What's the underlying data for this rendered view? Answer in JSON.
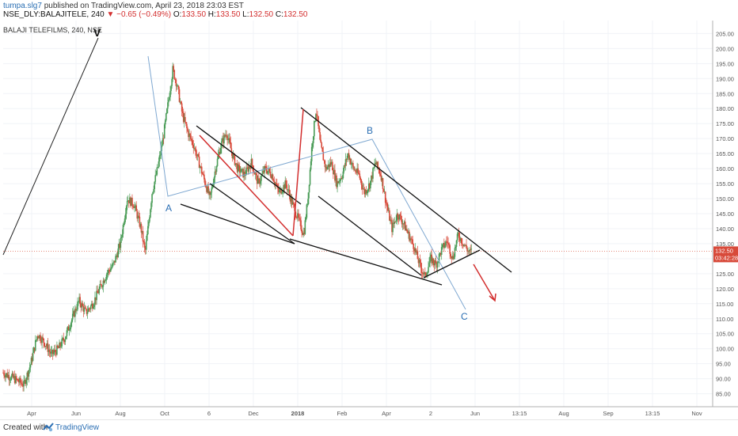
{
  "header": {
    "user": "tumpa.slg7",
    "published": "published on TradingView.com, April 23, 2018 23:03 EST",
    "symbol": "NSE_DLY:BALAJITELE, 240",
    "arrow": "▼",
    "change": "−0.65 (−0.49%)",
    "o_label": "O:",
    "o_val": "133.50",
    "h_label": "H:",
    "h_val": "133.50",
    "l_label": "L:",
    "l_val": "132.50",
    "c_label": "C:",
    "c_val": "132.50"
  },
  "footer": {
    "created": "Created with",
    "brand": "TradingView"
  },
  "colors": {
    "up": "#4a9c57",
    "down": "#d84a3a",
    "price_line": "#e07a6a",
    "wave_blue": "#7fa8d1",
    "red_line": "#d32f2f",
    "black_line": "#111111",
    "label_blue": "#2a6eb3"
  },
  "chart_data": {
    "type": "candlestick",
    "title": "BALAJI TELEFILMS, 240, NSE",
    "y_ticks": [
      "205.00",
      "200.00",
      "195.00",
      "190.00",
      "185.00",
      "180.00",
      "175.00",
      "170.00",
      "165.00",
      "160.00",
      "155.00",
      "150.00",
      "145.00",
      "140.00",
      "135.00",
      "130.00",
      "125.00",
      "120.00",
      "115.00",
      "110.00",
      "105.00",
      "100.00",
      "95.00",
      "90.00",
      "85.00"
    ],
    "ylim": [
      82,
      208
    ],
    "x_ticks": [
      "Apr",
      "Jun",
      "Aug",
      "Oct",
      "6",
      "Dec",
      "2018",
      "Feb",
      "Apr",
      "2",
      "Jun",
      "13:15",
      "Aug",
      "Sep",
      "13:15",
      "Nov"
    ],
    "last_price": "132.50",
    "countdown": "03:42:28",
    "wave_labels": [
      "V",
      "A",
      "B",
      "C"
    ],
    "price_path": [
      [
        0,
        92
      ],
      [
        8,
        90
      ],
      [
        15,
        88
      ],
      [
        20,
        95
      ],
      [
        25,
        105
      ],
      [
        30,
        102
      ],
      [
        35,
        98
      ],
      [
        40,
        100
      ],
      [
        45,
        104
      ],
      [
        50,
        110
      ],
      [
        55,
        116
      ],
      [
        60,
        112
      ],
      [
        65,
        115
      ],
      [
        70,
        120
      ],
      [
        75,
        125
      ],
      [
        80,
        128
      ],
      [
        85,
        135
      ],
      [
        90,
        150
      ],
      [
        95,
        148
      ],
      [
        100,
        140
      ],
      [
        103,
        132
      ],
      [
        108,
        152
      ],
      [
        112,
        160
      ],
      [
        116,
        170
      ],
      [
        120,
        183
      ],
      [
        123,
        193
      ],
      [
        126,
        188
      ],
      [
        130,
        178
      ],
      [
        134,
        172
      ],
      [
        138,
        168
      ],
      [
        142,
        162
      ],
      [
        146,
        156
      ],
      [
        150,
        150
      ],
      [
        154,
        160
      ],
      [
        158,
        168
      ],
      [
        162,
        172
      ],
      [
        166,
        165
      ],
      [
        170,
        160
      ],
      [
        175,
        158
      ],
      [
        180,
        162
      ],
      [
        185,
        155
      ],
      [
        190,
        160
      ],
      [
        195,
        158
      ],
      [
        200,
        152
      ],
      [
        205,
        155
      ],
      [
        210,
        148
      ],
      [
        215,
        142
      ],
      [
        218,
        138
      ],
      [
        221,
        150
      ],
      [
        224,
        168
      ],
      [
        227,
        180
      ],
      [
        230,
        168
      ],
      [
        234,
        160
      ],
      [
        238,
        162
      ],
      [
        242,
        155
      ],
      [
        246,
        158
      ],
      [
        250,
        165
      ],
      [
        254,
        160
      ],
      [
        258,
        158
      ],
      [
        262,
        152
      ],
      [
        266,
        155
      ],
      [
        270,
        162
      ],
      [
        274,
        158
      ],
      [
        278,
        148
      ],
      [
        282,
        140
      ],
      [
        286,
        145
      ],
      [
        290,
        142
      ],
      [
        294,
        138
      ],
      [
        298,
        134
      ],
      [
        302,
        128
      ],
      [
        306,
        124
      ],
      [
        310,
        130
      ],
      [
        314,
        128
      ],
      [
        318,
        133
      ],
      [
        322,
        136
      ],
      [
        326,
        130
      ],
      [
        330,
        138
      ],
      [
        334,
        135
      ],
      [
        338,
        132
      ],
      [
        340,
        132.5
      ]
    ]
  }
}
